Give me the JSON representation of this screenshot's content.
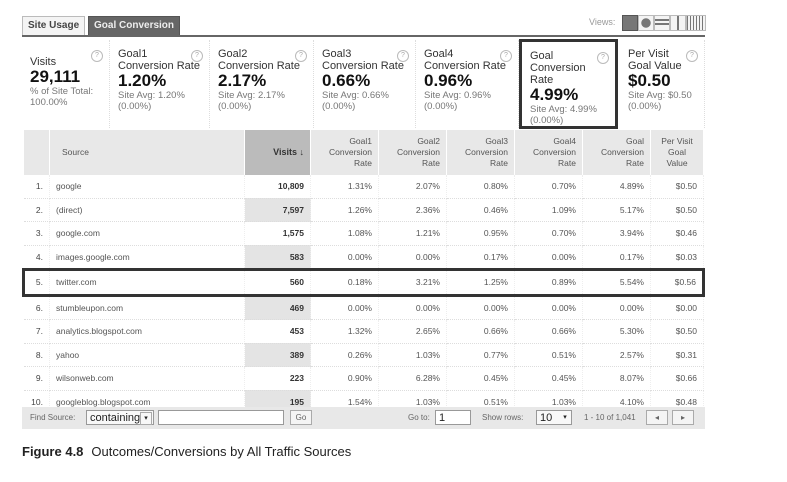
{
  "tabs": [
    {
      "label": "Site Usage",
      "active": false
    },
    {
      "label": "Goal Conversion",
      "active": true
    }
  ],
  "views": {
    "label": "Views:",
    "icons": [
      "table-view-icon",
      "pie-view-icon",
      "bar-view-icon",
      "comparison-view-icon",
      "pivot-view-icon"
    ]
  },
  "summary": [
    {
      "label": "Visits",
      "value": "29,111",
      "sub1": "% of Site Total:",
      "sub2": "100.00%"
    },
    {
      "label": "Goal1 Conversion Rate",
      "value": "1.20%",
      "sub1": "Site Avg: 1.20%",
      "sub2": "(0.00%)"
    },
    {
      "label": "Goal2 Conversion Rate",
      "value": "2.17%",
      "sub1": "Site Avg: 2.17%",
      "sub2": "(0.00%)"
    },
    {
      "label": "Goal3 Conversion Rate",
      "value": "0.66%",
      "sub1": "Site Avg: 0.66%",
      "sub2": "(0.00%)"
    },
    {
      "label": "Goal4 Conversion Rate",
      "value": "0.96%",
      "sub1": "Site Avg: 0.96%",
      "sub2": "(0.00%)"
    },
    {
      "label": "Goal Conversion Rate",
      "value": "4.99%",
      "sub1": "Site Avg: 4.99%",
      "sub2": "(0.00%)",
      "highlighted": true
    },
    {
      "label": "Per Visit Goal Value",
      "value": "$0.50",
      "sub1": "Site Avg: $0.50",
      "sub2": "(0.00%)"
    }
  ],
  "table": {
    "headers": [
      "Source",
      "Visits ↓",
      "Goal1 Conversion Rate",
      "Goal2 Conversion Rate",
      "Goal3 Conversion Rate",
      "Goal4 Conversion Rate",
      "Goal Conversion Rate",
      "Per Visit Goal Value"
    ],
    "rows": [
      [
        "1.",
        "google",
        "10,809",
        "1.31%",
        "2.07%",
        "0.80%",
        "0.70%",
        "4.89%",
        "$0.50"
      ],
      [
        "2.",
        "(direct)",
        "7,597",
        "1.26%",
        "2.36%",
        "0.46%",
        "1.09%",
        "5.17%",
        "$0.50"
      ],
      [
        "3.",
        "google.com",
        "1,575",
        "1.08%",
        "1.21%",
        "0.95%",
        "0.70%",
        "3.94%",
        "$0.46"
      ],
      [
        "4.",
        "images.google.com",
        "583",
        "0.00%",
        "0.00%",
        "0.17%",
        "0.00%",
        "0.17%",
        "$0.03"
      ],
      [
        "5.",
        "twitter.com",
        "560",
        "0.18%",
        "3.21%",
        "1.25%",
        "0.89%",
        "5.54%",
        "$0.56"
      ],
      [
        "6.",
        "stumbleupon.com",
        "469",
        "0.00%",
        "0.00%",
        "0.00%",
        "0.00%",
        "0.00%",
        "$0.00"
      ],
      [
        "7.",
        "analytics.blogspot.com",
        "453",
        "1.32%",
        "2.65%",
        "0.66%",
        "0.66%",
        "5.30%",
        "$0.50"
      ],
      [
        "8.",
        "yahoo",
        "389",
        "0.26%",
        "1.03%",
        "0.77%",
        "0.51%",
        "2.57%",
        "$0.31"
      ],
      [
        "9.",
        "wilsonweb.com",
        "223",
        "0.90%",
        "6.28%",
        "0.45%",
        "0.45%",
        "8.07%",
        "$0.66"
      ],
      [
        "10.",
        "googleblog.blogspot.com",
        "195",
        "1.54%",
        "1.03%",
        "0.51%",
        "1.03%",
        "4.10%",
        "$0.48"
      ]
    ],
    "highlighted_row": 5
  },
  "footer": {
    "find_label": "Find Source:",
    "match_value": "containing",
    "search_value": "",
    "go_label": "Go",
    "goto_label": "Go to:",
    "goto_value": "1",
    "show_rows_label": "Show rows:",
    "show_rows_value": "10",
    "range": "1 - 10 of 1,041"
  },
  "caption": {
    "figure": "Figure 4.8",
    "text": "Outcomes/Conversions by All Traffic Sources"
  }
}
